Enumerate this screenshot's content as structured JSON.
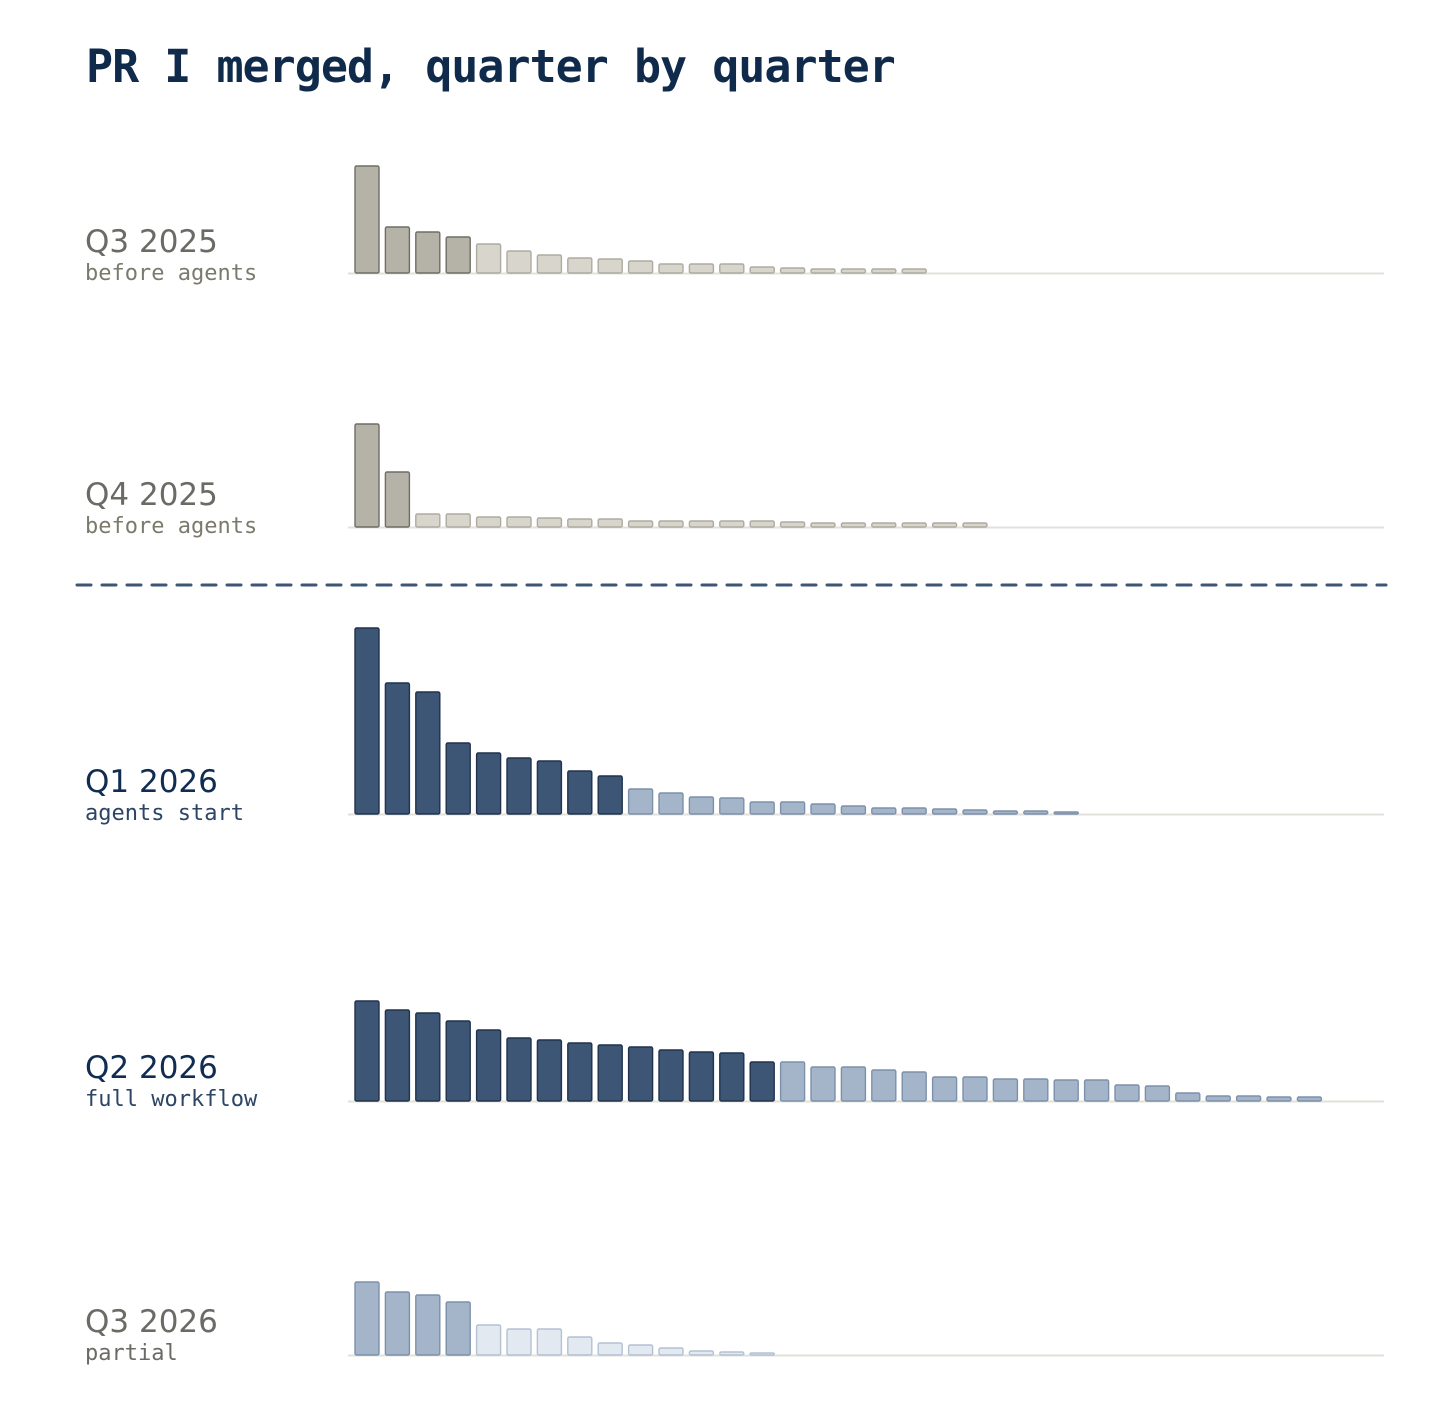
{
  "title": "PR I merged, quarter by quarter",
  "colors": {
    "title": "#0f2a4a",
    "divider": "#3d5676",
    "baseline": "#e2e0d8",
    "before_label": "#6b6b66",
    "before_note": "#7b7a6c",
    "agent_label": "#102c52",
    "agent_note": "#2c4466",
    "partial_label": "#6b6b66",
    "partial_note": "#6b6b66"
  },
  "chart_data": {
    "type": "bar",
    "title": "PR I merged, quarter by quarter",
    "xlabel": "",
    "ylabel": "",
    "grid": false,
    "legend": "none",
    "divider_after_row": 1,
    "rows": [
      {
        "quarter": "Q3 2025",
        "note": "before agents",
        "label_style": "before",
        "strong_count": 4,
        "fill_strong": "#b5b3a7",
        "stroke_strong": "#6f6e66",
        "fill_light": "#d8d6cc",
        "stroke_light": "#adab9f",
        "values": [
          107,
          46,
          41,
          36,
          29,
          22,
          18,
          15,
          14,
          12,
          9,
          9,
          9,
          6,
          5,
          4,
          4,
          4,
          4
        ]
      },
      {
        "quarter": "Q4 2025",
        "note": "before agents",
        "label_style": "before",
        "strong_count": 2,
        "fill_strong": "#b5b3a7",
        "stroke_strong": "#6f6e66",
        "fill_light": "#d8d6cc",
        "stroke_light": "#adab9f",
        "values": [
          103,
          55,
          13,
          13,
          10,
          10,
          9,
          8,
          8,
          6,
          6,
          6,
          6,
          6,
          5,
          4,
          4,
          4,
          4,
          4,
          4
        ]
      },
      {
        "quarter": "Q1 2026",
        "note": "agents start",
        "label_style": "agent",
        "strong_count": 9,
        "fill_strong": "#3e5676",
        "stroke_strong": "#20324c",
        "fill_light": "#a5b5c9",
        "stroke_light": "#7d90aa",
        "values": [
          186,
          131,
          122,
          71,
          61,
          56,
          53,
          43,
          38,
          25,
          21,
          17,
          16,
          12,
          12,
          10,
          8,
          6,
          6,
          5,
          4,
          3,
          3,
          2
        ]
      },
      {
        "quarter": "Q2 2026",
        "note": "full workflow",
        "label_style": "agent",
        "strong_count": 14,
        "fill_strong": "#3e5676",
        "stroke_strong": "#20324c",
        "fill_light": "#a5b5c9",
        "stroke_light": "#7d90aa",
        "values": [
          100,
          91,
          88,
          80,
          71,
          63,
          61,
          58,
          56,
          54,
          51,
          49,
          48,
          39,
          39,
          34,
          34,
          31,
          29,
          24,
          24,
          22,
          22,
          21,
          21,
          16,
          15,
          8,
          5,
          5,
          4,
          4
        ]
      },
      {
        "quarter": "Q3 2026",
        "note": "partial",
        "label_style": "partial",
        "strong_count": 4,
        "fill_strong": "#a5b5c9",
        "stroke_strong": "#7d90aa",
        "fill_light": "#e3e9f1",
        "stroke_light": "#b3c1d3",
        "values": [
          73,
          63,
          60,
          53,
          30,
          26,
          26,
          18,
          12,
          10,
          7,
          4,
          3,
          2
        ]
      }
    ]
  }
}
